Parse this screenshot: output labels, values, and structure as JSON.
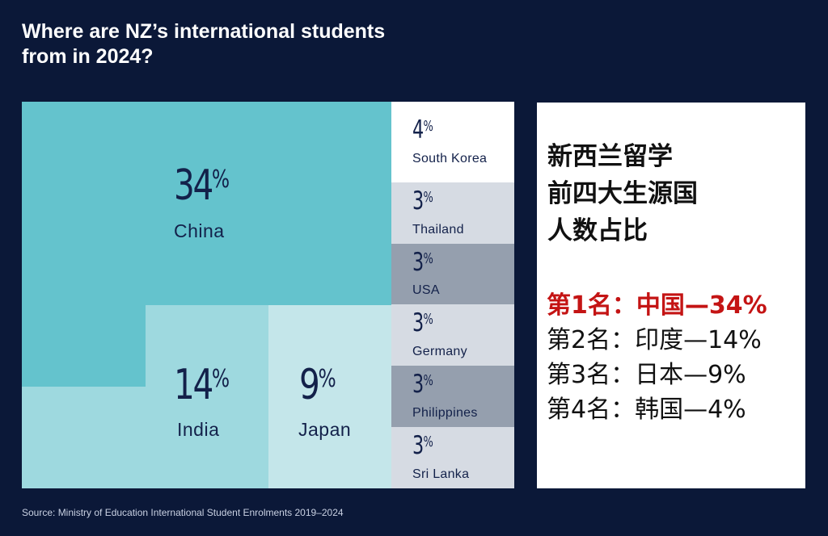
{
  "title_lines": [
    "Where are NZ’s international students",
    "from in 2024?"
  ],
  "source": "Source: Ministry of Education International Student Enrolments 2019–2024",
  "chart_data": {
    "type": "treemap",
    "title": "Where are NZ’s international students from in 2024?",
    "unit": "%",
    "items": [
      {
        "label": "China",
        "value": 34,
        "color": "#64c3cd"
      },
      {
        "label": "India",
        "value": 14,
        "color": "#9ed9df"
      },
      {
        "label": "Japan",
        "value": 9,
        "color": "#c4e6ea"
      },
      {
        "label": "South Korea",
        "value": 4,
        "color": "#ffffff"
      },
      {
        "label": "Thailand",
        "value": 3,
        "color": "#d6dbe3"
      },
      {
        "label": "USA",
        "value": 3,
        "color": "#959fae"
      },
      {
        "label": "Germany",
        "value": 3,
        "color": "#d6dbe3"
      },
      {
        "label": "Philippines",
        "value": 3,
        "color": "#959fae"
      },
      {
        "label": "Sri Lanka",
        "value": 3,
        "color": "#d6dbe3"
      }
    ]
  },
  "panel": {
    "heading_lines": [
      "新西兰留学",
      "前四大生源国",
      "人数占比"
    ],
    "ranking": [
      "第1名：中国—34%",
      "第2名：印度—14%",
      "第3名：日本—9%",
      "第4名：韩国—4%"
    ],
    "highlight_color": "#c41414"
  }
}
